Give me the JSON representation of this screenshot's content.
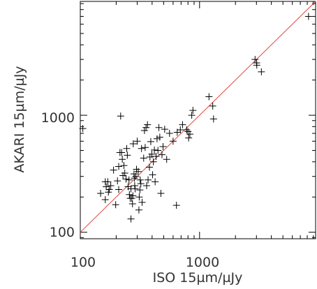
{
  "chart_data": {
    "type": "scatter",
    "xlabel": "ISO 15µm/µJy",
    "ylabel": "AKARI 15µm/µJy",
    "x_scale": "log",
    "y_scale": "log",
    "xlim": [
      100,
      9400
    ],
    "ylim": [
      88,
      9400
    ],
    "x_ticks": [
      {
        "value": 100,
        "label": "100"
      },
      {
        "value": 1000,
        "label": "1000"
      }
    ],
    "y_ticks": [
      {
        "value": 100,
        "label": "100"
      },
      {
        "value": 1000,
        "label": "1000"
      }
    ],
    "grid": false,
    "reference_line": {
      "type": "one-to-one",
      "color": "#e0463c"
    },
    "marker": "plus",
    "marker_color": "#000000",
    "points": [
      [
        105,
        770
      ],
      [
        148,
        215
      ],
      [
        162,
        190
      ],
      [
        162,
        270
      ],
      [
        165,
        245
      ],
      [
        170,
        270
      ],
      [
        172,
        220
      ],
      [
        175,
        232
      ],
      [
        180,
        250
      ],
      [
        190,
        340
      ],
      [
        198,
        172
      ],
      [
        205,
        275
      ],
      [
        210,
        232
      ],
      [
        210,
        365
      ],
      [
        215,
        480
      ],
      [
        218,
        985
      ],
      [
        222,
        480
      ],
      [
        225,
        420
      ],
      [
        228,
        305
      ],
      [
        232,
        372
      ],
      [
        236,
        320
      ],
      [
        242,
        285
      ],
      [
        245,
        520
      ],
      [
        248,
        455
      ],
      [
        252,
        245
      ],
      [
        256,
        280
      ],
      [
        258,
        210
      ],
      [
        262,
        195
      ],
      [
        266,
        130
      ],
      [
        266,
        235
      ],
      [
        270,
        195
      ],
      [
        274,
        175
      ],
      [
        276,
        205
      ],
      [
        278,
        570
      ],
      [
        282,
        315
      ],
      [
        284,
        290
      ],
      [
        286,
        250
      ],
      [
        288,
        235
      ],
      [
        292,
        300
      ],
      [
        296,
        345
      ],
      [
        300,
        600
      ],
      [
        306,
        330
      ],
      [
        310,
        155
      ],
      [
        312,
        200
      ],
      [
        316,
        230
      ],
      [
        318,
        280
      ],
      [
        322,
        260
      ],
      [
        326,
        520
      ],
      [
        330,
        180
      ],
      [
        340,
        430
      ],
      [
        345,
        740
      ],
      [
        350,
        530
      ],
      [
        356,
        785
      ],
      [
        360,
        250
      ],
      [
        366,
        830
      ],
      [
        370,
        280
      ],
      [
        380,
        360
      ],
      [
        384,
        440
      ],
      [
        390,
        595
      ],
      [
        398,
        465
      ],
      [
        404,
        310
      ],
      [
        410,
        400
      ],
      [
        418,
        505
      ],
      [
        424,
        270
      ],
      [
        432,
        445
      ],
      [
        440,
        630
      ],
      [
        448,
        500
      ],
      [
        456,
        785
      ],
      [
        464,
        650
      ],
      [
        474,
        215
      ],
      [
        484,
        460
      ],
      [
        494,
        540
      ],
      [
        510,
        760
      ],
      [
        530,
        420
      ],
      [
        560,
        700
      ],
      [
        600,
        600
      ],
      [
        640,
        170
      ],
      [
        650,
        715
      ],
      [
        690,
        750
      ],
      [
        720,
        830
      ],
      [
        780,
        750
      ],
      [
        800,
        725
      ],
      [
        810,
        640
      ],
      [
        830,
        690
      ],
      [
        860,
        1000
      ],
      [
        880,
        1100
      ],
      [
        1200,
        1440
      ],
      [
        1290,
        1200
      ],
      [
        1310,
        930
      ],
      [
        2920,
        3000
      ],
      [
        3010,
        2800
      ],
      [
        3020,
        2680
      ],
      [
        3300,
        2350
      ],
      [
        8200,
        7000
      ]
    ]
  }
}
